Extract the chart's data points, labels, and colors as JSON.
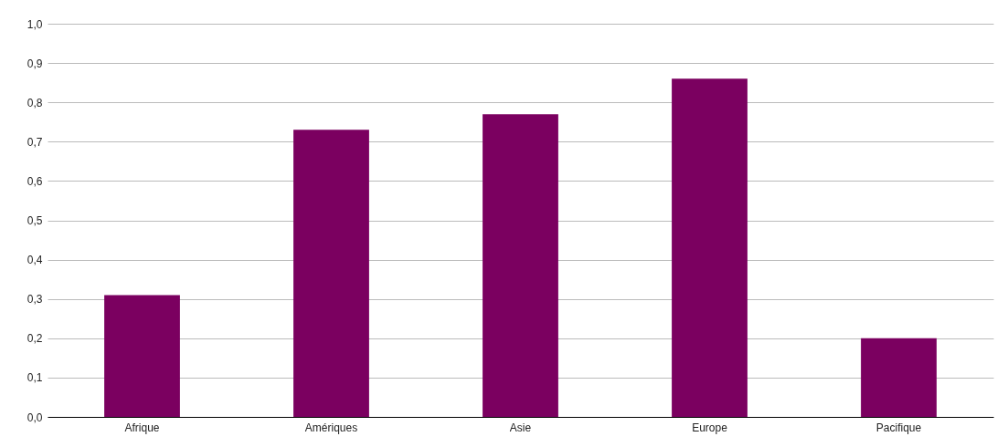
{
  "chart_data": {
    "type": "bar",
    "categories": [
      "Afrique",
      "Amériques",
      "Asie",
      "Europe",
      "Pacifique"
    ],
    "values": [
      0.31,
      0.73,
      0.77,
      0.86,
      0.2
    ],
    "color": "#7b0060",
    "ylim": [
      0,
      1
    ],
    "yticks": [
      {
        "value": 0,
        "label": "0,0"
      },
      {
        "value": 0.1,
        "label": "0,1"
      },
      {
        "value": 0.2,
        "label": "0,2"
      },
      {
        "value": 0.3,
        "label": "0,3"
      },
      {
        "value": 0.4,
        "label": "0,4"
      },
      {
        "value": 0.5,
        "label": "0,5"
      },
      {
        "value": 0.6,
        "label": "0,6"
      },
      {
        "value": 0.7,
        "label": "0,7"
      },
      {
        "value": 0.8,
        "label": "0,8"
      },
      {
        "value": 0.9,
        "label": "0,9"
      },
      {
        "value": 1,
        "label": "1,0"
      }
    ],
    "grid": "y"
  }
}
